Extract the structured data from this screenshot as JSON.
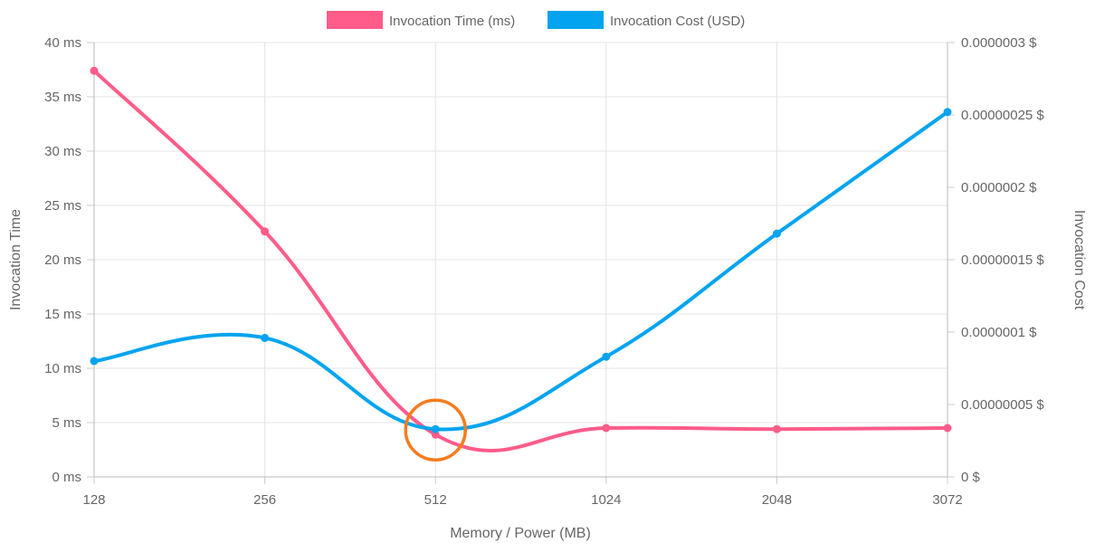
{
  "chart_data": {
    "type": "line",
    "x_label": "Memory / Power (MB)",
    "categories": [
      "128",
      "256",
      "512",
      "1024",
      "2048",
      "3072"
    ],
    "y_left": {
      "title": "Invocation Time",
      "range": [
        0,
        40
      ],
      "ticks": [
        0,
        5,
        10,
        15,
        20,
        25,
        30,
        35,
        40
      ],
      "tick_labels": [
        "0 ms",
        "5 ms",
        "10 ms",
        "15 ms",
        "20 ms",
        "25 ms",
        "30 ms",
        "35 ms",
        "40 ms"
      ]
    },
    "y_right": {
      "title": "Invocation Cost",
      "range": [
        0,
        3e-07
      ],
      "ticks": [
        0,
        5e-08,
        1e-07,
        1.5e-07,
        2e-07,
        2.5e-07,
        3e-07
      ],
      "tick_labels": [
        "0 $",
        "0.00000005 $",
        "0.0000001 $",
        "0.00000015 $",
        "0.0000002 $",
        "0.00000025 $",
        "0.0000003 $"
      ]
    },
    "series": [
      {
        "name": "Invocation Time (ms)",
        "axis": "left",
        "color": "#ff5c8a",
        "values": [
          37.4,
          22.6,
          3.9,
          4.5,
          4.4,
          4.5
        ]
      },
      {
        "name": "Invocation Cost (USD)",
        "axis": "right",
        "color": "#03a4ef",
        "values": [
          8e-08,
          9.6e-08,
          3.3e-08,
          8.3e-08,
          1.68e-07,
          2.52e-07
        ]
      }
    ],
    "highlight": {
      "category": "512",
      "color": "#f57c1f"
    },
    "grid": true,
    "legend_position": "top-center"
  }
}
